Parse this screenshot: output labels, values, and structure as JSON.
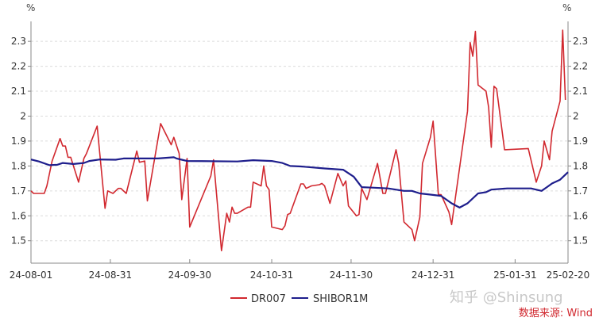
{
  "chart_data": {
    "type": "line",
    "title": "",
    "ylabel_left": "%",
    "ylabel_right": "%",
    "ylim": [
      1.41,
      2.38
    ],
    "yticks": [
      1.5,
      1.6,
      1.7,
      1.8,
      1.9,
      2,
      2.1,
      2.2,
      2.3
    ],
    "ytick_labels": [
      "1.5",
      "1.6",
      "1.7",
      "1.8",
      "1.9",
      "2",
      "2.1",
      "2.2",
      "2.3"
    ],
    "xlim": [
      "2024-08-01",
      "2025-02-20"
    ],
    "xticks": [
      "2024-08-01",
      "2024-08-31",
      "2024-09-30",
      "2024-10-31",
      "2024-11-30",
      "2024-12-31",
      "2025-01-31",
      "2025-02-20"
    ],
    "xtick_labels": [
      "24-08-01",
      "24-08-31",
      "24-09-30",
      "24-10-31",
      "24-11-30",
      "24-12-31",
      "25-01-31",
      "25-02-20"
    ],
    "grid": "horizontal dashed",
    "legend_placement": "bottom",
    "series": [
      {
        "name": "DR007",
        "color": "#d1282f",
        "x": [
          "2024-08-01",
          "2024-08-02",
          "2024-08-06",
          "2024-08-07",
          "2024-08-09",
          "2024-08-12",
          "2024-08-13",
          "2024-08-14",
          "2024-08-15",
          "2024-08-16",
          "2024-08-19",
          "2024-08-21",
          "2024-08-22",
          "2024-08-26",
          "2024-08-29",
          "2024-08-30",
          "2024-09-01",
          "2024-09-03",
          "2024-09-04",
          "2024-09-06",
          "2024-09-10",
          "2024-09-11",
          "2024-09-13",
          "2024-09-14",
          "2024-09-19",
          "2024-09-23",
          "2024-09-24",
          "2024-09-26",
          "2024-09-27",
          "2024-09-29",
          "2024-09-30",
          "2024-10-08",
          "2024-10-09",
          "2024-10-12",
          "2024-10-14",
          "2024-10-15",
          "2024-10-16",
          "2024-10-17",
          "2024-10-18",
          "2024-10-22",
          "2024-10-23",
          "2024-10-24",
          "2024-10-27",
          "2024-10-28",
          "2024-10-29",
          "2024-10-30",
          "2024-10-31",
          "2024-11-04",
          "2024-11-05",
          "2024-11-06",
          "2024-11-07",
          "2024-11-11",
          "2024-11-12",
          "2024-11-13",
          "2024-11-15",
          "2024-11-18",
          "2024-11-19",
          "2024-11-20",
          "2024-11-22",
          "2024-11-25",
          "2024-11-27",
          "2024-11-28",
          "2024-11-29",
          "2024-12-02",
          "2024-12-03",
          "2024-12-04",
          "2024-12-06",
          "2024-12-10",
          "2024-12-12",
          "2024-12-13",
          "2024-12-17",
          "2024-12-18",
          "2024-12-20",
          "2024-12-23",
          "2024-12-24",
          "2024-12-26",
          "2024-12-27",
          "2024-12-30",
          "2024-12-31",
          "2025-01-02",
          "2025-01-03",
          "2025-01-06",
          "2025-01-07",
          "2025-01-13",
          "2025-01-14",
          "2025-01-15",
          "2025-01-16",
          "2025-01-17",
          "2025-01-20",
          "2025-01-21",
          "2025-01-22",
          "2025-01-23",
          "2025-01-24",
          "2025-01-27",
          "2025-02-05",
          "2025-02-08",
          "2025-02-10",
          "2025-02-11",
          "2025-02-13",
          "2025-02-14",
          "2025-02-17",
          "2025-02-18",
          "2025-02-19"
        ],
        "values": [
          1.7,
          1.69,
          1.69,
          1.72,
          1.82,
          1.91,
          1.88,
          1.88,
          1.835,
          1.835,
          1.735,
          1.83,
          1.85,
          1.96,
          1.63,
          1.7,
          1.69,
          1.71,
          1.71,
          1.69,
          1.86,
          1.815,
          1.82,
          1.66,
          1.97,
          1.885,
          1.915,
          1.85,
          1.665,
          1.83,
          1.555,
          1.76,
          1.825,
          1.46,
          1.61,
          1.575,
          1.635,
          1.61,
          1.61,
          1.635,
          1.635,
          1.735,
          1.72,
          1.8,
          1.72,
          1.705,
          1.555,
          1.545,
          1.56,
          1.605,
          1.61,
          1.728,
          1.728,
          1.71,
          1.72,
          1.725,
          1.73,
          1.72,
          1.65,
          1.77,
          1.72,
          1.74,
          1.64,
          1.6,
          1.605,
          1.71,
          1.665,
          1.81,
          1.69,
          1.69,
          1.865,
          1.81,
          1.575,
          1.545,
          1.5,
          1.595,
          1.81,
          1.915,
          1.98,
          1.685,
          1.685,
          1.615,
          1.565,
          2.02,
          2.295,
          2.24,
          2.34,
          2.125,
          2.1,
          2.035,
          1.875,
          2.12,
          2.11,
          1.865,
          1.87,
          1.735,
          1.8,
          1.9,
          1.825,
          1.94,
          2.06,
          2.345,
          2.065
        ]
      },
      {
        "name": "SHIBOR1M",
        "color": "#1e1e8c",
        "x": [
          "2024-08-01",
          "2024-08-04",
          "2024-08-08",
          "2024-08-11",
          "2024-08-13",
          "2024-08-17",
          "2024-08-21",
          "2024-08-23",
          "2024-08-27",
          "2024-09-02",
          "2024-09-05",
          "2024-09-11",
          "2024-09-18",
          "2024-09-24",
          "2024-09-25",
          "2024-09-27",
          "2024-09-29",
          "2024-10-18",
          "2024-10-24",
          "2024-10-31",
          "2024-11-04",
          "2024-11-07",
          "2024-11-11",
          "2024-11-20",
          "2024-11-27",
          "2024-12-01",
          "2024-12-04",
          "2024-12-08",
          "2024-12-14",
          "2024-12-20",
          "2024-12-23",
          "2024-12-26",
          "2024-12-30",
          "2025-01-03",
          "2025-01-07",
          "2025-01-10",
          "2025-01-13",
          "2025-01-17",
          "2025-01-20",
          "2025-01-22",
          "2025-01-28",
          "2025-02-06",
          "2025-02-10",
          "2025-02-12",
          "2025-02-14",
          "2025-02-17",
          "2025-02-20"
        ],
        "values": [
          1.826,
          1.818,
          1.803,
          1.805,
          1.812,
          1.808,
          1.812,
          1.82,
          1.826,
          1.825,
          1.83,
          1.83,
          1.83,
          1.835,
          1.83,
          1.825,
          1.82,
          1.818,
          1.823,
          1.82,
          1.812,
          1.8,
          1.798,
          1.79,
          1.785,
          1.757,
          1.715,
          1.713,
          1.71,
          1.7,
          1.7,
          1.69,
          1.685,
          1.68,
          1.65,
          1.633,
          1.65,
          1.69,
          1.695,
          1.705,
          1.71,
          1.71,
          1.7,
          1.715,
          1.73,
          1.745,
          1.775
        ]
      }
    ]
  },
  "watermark": "知乎 @Shinsung",
  "source": "数据来源: Wind"
}
